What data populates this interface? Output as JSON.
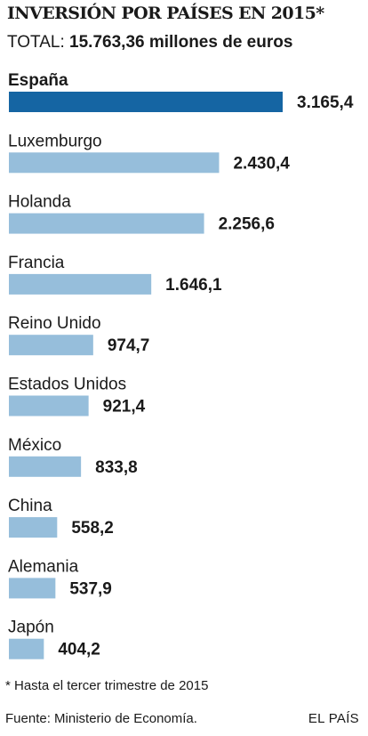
{
  "chart_data": {
    "type": "bar",
    "orientation": "horizontal",
    "title": "INVERSIÓN POR PAÍSES EN 2015*",
    "subtitle_label": "TOTAL:",
    "subtitle_value": "15.763,36 millones de euros",
    "categories": [
      "España",
      "Luxemburgo",
      "Holanda",
      "Francia",
      "Reino Unido",
      "Estados Unidos",
      "México",
      "China",
      "Alemania",
      "Japón"
    ],
    "values": [
      3165.4,
      2430.4,
      2256.6,
      1646.1,
      974.7,
      921.4,
      833.8,
      558.2,
      537.9,
      404.2
    ],
    "value_labels": [
      "3.165,4",
      "2.430,4",
      "2.256,6",
      "1.646,1",
      "974,7",
      "921,4",
      "833,8",
      "558,2",
      "537,9",
      "404,2"
    ],
    "highlight_index": 0,
    "colors": {
      "highlight": "#1565a3",
      "bar": "#96bedb",
      "text": "#1a1a1a"
    },
    "grid": false,
    "legend": "none"
  },
  "footnote": "* Hasta el tercer trimestre de 2015",
  "source": "Fuente: Ministerio de Economía.",
  "brand": "EL PAÍS"
}
